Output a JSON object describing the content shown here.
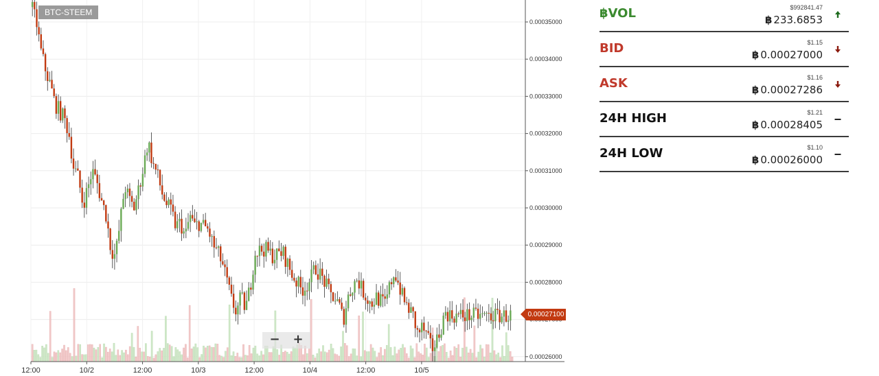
{
  "pair": "BTC-STEEM",
  "colors": {
    "up": "#6aaa55",
    "down": "#c23a11",
    "vol_up": "#cfe8c8",
    "vol_down": "#f2c9c9",
    "label_green": "#3b8a2f",
    "label_red": "#c0392b",
    "arrow_up": "#1e6b1e",
    "arrow_down": "#8b1a0e"
  },
  "zoom": {
    "out_label": "−",
    "in_label": "+"
  },
  "last_price": "0.00027100",
  "stats": [
    {
      "label": "฿VOL",
      "usd": "$992841.47",
      "btc": "233.6853",
      "trend": "up",
      "label_color": "green"
    },
    {
      "label": "BID",
      "usd": "$1.15",
      "btc": "0.00027000",
      "trend": "down",
      "label_color": "red"
    },
    {
      "label": "ASK",
      "usd": "$1.16",
      "btc": "0.00027286",
      "trend": "down",
      "label_color": "red"
    },
    {
      "label": "24H HIGH",
      "usd": "$1.21",
      "btc": "0.00028405",
      "trend": "flat",
      "label_color": "dark"
    },
    {
      "label": "24H LOW",
      "usd": "$1.10",
      "btc": "0.00026000",
      "trend": "flat",
      "label_color": "dark"
    }
  ],
  "btc_symbol": "฿",
  "chart_data": {
    "type": "candlestick",
    "y_ticks": [
      "0.00035000",
      "0.00034000",
      "0.00033000",
      "0.00032000",
      "0.00031000",
      "0.00030000",
      "0.00029000",
      "0.00028000",
      "0.00027000",
      "0.00026000"
    ],
    "ylim": [
      0.000259,
      0.000355
    ],
    "x_ticks": [
      "12:00",
      "10/2",
      "12:00",
      "10/3",
      "12:00",
      "10/4",
      "12:00",
      "10/5"
    ],
    "x_tick_hours": [
      12,
      24,
      36,
      48,
      60,
      72,
      84,
      96
    ],
    "xlim_hours": [
      12,
      115.5
    ],
    "close_path": [
      [
        12,
        0.000354
      ],
      [
        13,
        0.00035
      ],
      [
        14,
        0.000342
      ],
      [
        15,
        0.000337
      ],
      [
        16,
        0.000333
      ],
      [
        17,
        0.000328
      ],
      [
        19,
        0.000324
      ],
      [
        20,
        0.00032
      ],
      [
        21,
        0.000311
      ],
      [
        22,
        0.000308
      ],
      [
        23,
        0.000301
      ],
      [
        24,
        0.000305
      ],
      [
        25,
        0.00031
      ],
      [
        26,
        0.000307
      ],
      [
        27,
        0.000302
      ],
      [
        28,
        0.000298
      ],
      [
        29,
        0.000289
      ],
      [
        30,
        0.000287
      ],
      [
        31,
        0.000296
      ],
      [
        32,
        0.000306
      ],
      [
        33,
        0.000302
      ],
      [
        34,
        0.0003
      ],
      [
        35,
        0.000305
      ],
      [
        36,
        0.000311
      ],
      [
        37,
        0.000318
      ],
      [
        38,
        0.000312
      ],
      [
        39,
        0.000309
      ],
      [
        40,
        0.000304
      ],
      [
        41,
        0.000301
      ],
      [
        42,
        0.000299
      ],
      [
        43,
        0.000295
      ],
      [
        44,
        0.000296
      ],
      [
        45,
        0.000292
      ],
      [
        46,
        0.000298
      ],
      [
        47,
        0.000295
      ],
      [
        48,
        0.000296
      ],
      [
        50,
        0.000294
      ],
      [
        51,
        0.00029
      ],
      [
        52,
        0.000288
      ],
      [
        53,
        0.000285
      ],
      [
        54,
        0.00028
      ],
      [
        55,
        0.000275
      ],
      [
        56,
        0.000272
      ],
      [
        57,
        0.000276
      ],
      [
        58,
        0.000273
      ],
      [
        59,
        0.000279
      ],
      [
        60,
        0.000288
      ],
      [
        62,
        0.000289
      ],
      [
        64,
        0.000287
      ],
      [
        66,
        0.000288
      ],
      [
        67,
        0.000285
      ],
      [
        68,
        0.000282
      ],
      [
        69,
        0.00028
      ],
      [
        70,
        0.000278
      ],
      [
        71,
        0.000279
      ],
      [
        72,
        0.000281
      ],
      [
        73,
        0.000284
      ],
      [
        74,
        0.000282
      ],
      [
        75,
        0.00028
      ],
      [
        76,
        0.000277
      ],
      [
        77,
        0.000276
      ],
      [
        78,
        0.000274
      ],
      [
        79,
        0.00027
      ],
      [
        80,
        0.000276
      ],
      [
        81,
        0.000279
      ],
      [
        82,
        0.000281
      ],
      [
        83,
        0.000278
      ],
      [
        84,
        0.000276
      ],
      [
        85,
        0.000274
      ],
      [
        86,
        0.000276
      ],
      [
        87,
        0.000275
      ],
      [
        88,
        0.000274
      ],
      [
        89,
        0.000279
      ],
      [
        90,
        0.000283
      ],
      [
        91,
        0.000279
      ],
      [
        92,
        0.000275
      ],
      [
        93,
        0.000273
      ],
      [
        94,
        0.000271
      ],
      [
        95,
        0.000266
      ],
      [
        96,
        0.000268
      ],
      [
        97,
        0.000265
      ],
      [
        98,
        0.000262
      ],
      [
        99,
        0.000264
      ],
      [
        100,
        0.000268
      ],
      [
        101,
        0.000272
      ],
      [
        102,
        0.000271
      ]
    ]
  }
}
